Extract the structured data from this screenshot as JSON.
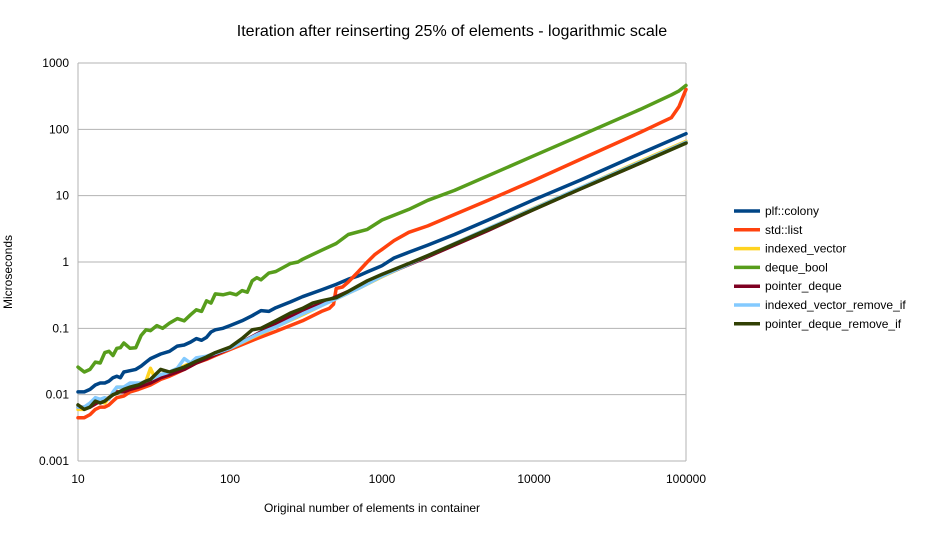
{
  "chart_data": {
    "type": "line",
    "title": "Iteration after reinserting 25% of elements - logarithmic scale",
    "xlabel": "Original number of elements in container",
    "ylabel": "Microseconds",
    "x_scale": "log",
    "y_scale": "log",
    "xlim": [
      10,
      100000
    ],
    "ylim": [
      0.001,
      1000
    ],
    "x_ticks": [
      "10",
      "100",
      "1000",
      "10000",
      "100000"
    ],
    "y_ticks": [
      "0.001",
      "0.01",
      "0.1",
      "1",
      "10",
      "100",
      "1000"
    ],
    "grid": "horizontal",
    "legend_position": "right",
    "series": [
      {
        "name": "plf::colony",
        "color": "#004586",
        "points": [
          [
            10,
            0.011
          ],
          [
            11,
            0.011
          ],
          [
            12,
            0.012
          ],
          [
            13,
            0.014
          ],
          [
            14,
            0.015
          ],
          [
            15,
            0.015
          ],
          [
            16,
            0.016
          ],
          [
            17,
            0.018
          ],
          [
            18,
            0.019
          ],
          [
            19,
            0.018
          ],
          [
            20,
            0.022
          ],
          [
            22,
            0.023
          ],
          [
            24,
            0.024
          ],
          [
            26,
            0.027
          ],
          [
            28,
            0.031
          ],
          [
            30,
            0.035
          ],
          [
            35,
            0.041
          ],
          [
            40,
            0.045
          ],
          [
            45,
            0.054
          ],
          [
            50,
            0.056
          ],
          [
            55,
            0.062
          ],
          [
            60,
            0.07
          ],
          [
            65,
            0.066
          ],
          [
            70,
            0.073
          ],
          [
            75,
            0.088
          ],
          [
            80,
            0.095
          ],
          [
            90,
            0.1
          ],
          [
            100,
            0.11
          ],
          [
            120,
            0.13
          ],
          [
            140,
            0.155
          ],
          [
            160,
            0.185
          ],
          [
            180,
            0.18
          ],
          [
            200,
            0.205
          ],
          [
            250,
            0.25
          ],
          [
            300,
            0.3
          ],
          [
            400,
            0.38
          ],
          [
            500,
            0.46
          ],
          [
            600,
            0.55
          ],
          [
            700,
            0.62
          ],
          [
            800,
            0.71
          ],
          [
            1000,
            0.88
          ],
          [
            1200,
            1.15
          ],
          [
            1500,
            1.4
          ],
          [
            2000,
            1.8
          ],
          [
            3000,
            2.6
          ],
          [
            5000,
            4.3
          ],
          [
            10000,
            8.7
          ],
          [
            20000,
            17
          ],
          [
            50000,
            43
          ],
          [
            100000,
            86
          ]
        ]
      },
      {
        "name": "std::list",
        "color": "#ff420e",
        "points": [
          [
            10,
            0.0045
          ],
          [
            11,
            0.0045
          ],
          [
            12,
            0.005
          ],
          [
            13,
            0.006
          ],
          [
            14,
            0.0065
          ],
          [
            15,
            0.0065
          ],
          [
            16,
            0.007
          ],
          [
            17,
            0.008
          ],
          [
            18,
            0.009
          ],
          [
            20,
            0.0095
          ],
          [
            22,
            0.011
          ],
          [
            25,
            0.012
          ],
          [
            30,
            0.014
          ],
          [
            35,
            0.017
          ],
          [
            40,
            0.019
          ],
          [
            50,
            0.024
          ],
          [
            60,
            0.03
          ],
          [
            70,
            0.034
          ],
          [
            80,
            0.039
          ],
          [
            100,
            0.048
          ],
          [
            150,
            0.07
          ],
          [
            200,
            0.09
          ],
          [
            300,
            0.13
          ],
          [
            400,
            0.18
          ],
          [
            450,
            0.2
          ],
          [
            480,
            0.23
          ],
          [
            500,
            0.4
          ],
          [
            550,
            0.42
          ],
          [
            600,
            0.5
          ],
          [
            700,
            0.72
          ],
          [
            800,
            1.0
          ],
          [
            900,
            1.3
          ],
          [
            1000,
            1.55
          ],
          [
            1200,
            2.1
          ],
          [
            1500,
            2.8
          ],
          [
            2000,
            3.5
          ],
          [
            3000,
            5.2
          ],
          [
            5000,
            8.5
          ],
          [
            10000,
            17
          ],
          [
            20000,
            35
          ],
          [
            50000,
            90
          ],
          [
            70000,
            130
          ],
          [
            80000,
            150
          ],
          [
            90000,
            220
          ],
          [
            95000,
            300
          ],
          [
            100000,
            400
          ]
        ]
      },
      {
        "name": "indexed_vector",
        "color": "#ffd320",
        "points": [
          [
            10,
            0.006
          ],
          [
            11,
            0.006
          ],
          [
            12,
            0.007
          ],
          [
            13,
            0.0075
          ],
          [
            14,
            0.008
          ],
          [
            15,
            0.0075
          ],
          [
            16,
            0.009
          ],
          [
            17,
            0.01
          ],
          [
            18,
            0.013
          ],
          [
            20,
            0.013
          ],
          [
            22,
            0.012
          ],
          [
            24,
            0.013
          ],
          [
            26,
            0.015
          ],
          [
            28,
            0.016
          ],
          [
            30,
            0.025
          ],
          [
            32,
            0.018
          ],
          [
            35,
            0.02
          ],
          [
            40,
            0.022
          ],
          [
            50,
            0.027
          ],
          [
            60,
            0.033
          ],
          [
            70,
            0.037
          ],
          [
            80,
            0.041
          ],
          [
            100,
            0.05
          ],
          [
            150,
            0.078
          ],
          [
            200,
            0.105
          ],
          [
            300,
            0.16
          ],
          [
            400,
            0.22
          ],
          [
            500,
            0.28
          ],
          [
            700,
            0.4
          ],
          [
            1000,
            0.6
          ],
          [
            2000,
            1.25
          ],
          [
            5000,
            3.2
          ],
          [
            10000,
            6.5
          ],
          [
            20000,
            13
          ],
          [
            50000,
            33
          ],
          [
            100000,
            66
          ]
        ]
      },
      {
        "name": "deque_bool",
        "color": "#579d1c",
        "points": [
          [
            10,
            0.026
          ],
          [
            11,
            0.022
          ],
          [
            12,
            0.024
          ],
          [
            13,
            0.031
          ],
          [
            14,
            0.03
          ],
          [
            15,
            0.043
          ],
          [
            16,
            0.045
          ],
          [
            17,
            0.039
          ],
          [
            18,
            0.05
          ],
          [
            19,
            0.051
          ],
          [
            20,
            0.06
          ],
          [
            22,
            0.05
          ],
          [
            24,
            0.051
          ],
          [
            26,
            0.078
          ],
          [
            28,
            0.095
          ],
          [
            30,
            0.092
          ],
          [
            33,
            0.11
          ],
          [
            36,
            0.1
          ],
          [
            40,
            0.12
          ],
          [
            45,
            0.14
          ],
          [
            50,
            0.13
          ],
          [
            55,
            0.16
          ],
          [
            60,
            0.19
          ],
          [
            65,
            0.18
          ],
          [
            70,
            0.26
          ],
          [
            75,
            0.24
          ],
          [
            80,
            0.33
          ],
          [
            90,
            0.32
          ],
          [
            100,
            0.34
          ],
          [
            110,
            0.32
          ],
          [
            120,
            0.37
          ],
          [
            130,
            0.35
          ],
          [
            140,
            0.52
          ],
          [
            150,
            0.58
          ],
          [
            160,
            0.54
          ],
          [
            180,
            0.68
          ],
          [
            200,
            0.72
          ],
          [
            250,
            0.95
          ],
          [
            280,
            1.0
          ],
          [
            300,
            1.1
          ],
          [
            400,
            1.5
          ],
          [
            500,
            1.9
          ],
          [
            600,
            2.6
          ],
          [
            800,
            3.1
          ],
          [
            1000,
            4.3
          ],
          [
            1500,
            6.2
          ],
          [
            2000,
            8.5
          ],
          [
            3000,
            12
          ],
          [
            5000,
            20
          ],
          [
            10000,
            40
          ],
          [
            20000,
            80
          ],
          [
            50000,
            200
          ],
          [
            80000,
            330
          ],
          [
            90000,
            380
          ],
          [
            100000,
            460
          ]
        ]
      },
      {
        "name": "pointer_deque",
        "color": "#7e0021",
        "points": [
          [
            10,
            0.0065
          ],
          [
            12,
            0.0065
          ],
          [
            14,
            0.008
          ],
          [
            16,
            0.009
          ],
          [
            18,
            0.011
          ],
          [
            20,
            0.011
          ],
          [
            22,
            0.012
          ],
          [
            25,
            0.013
          ],
          [
            30,
            0.015
          ],
          [
            35,
            0.018
          ],
          [
            40,
            0.02
          ],
          [
            50,
            0.024
          ],
          [
            60,
            0.03
          ],
          [
            70,
            0.035
          ],
          [
            80,
            0.04
          ],
          [
            100,
            0.05
          ],
          [
            150,
            0.082
          ],
          [
            200,
            0.115
          ],
          [
            250,
            0.15
          ],
          [
            300,
            0.18
          ],
          [
            400,
            0.24
          ],
          [
            500,
            0.3
          ],
          [
            700,
            0.42
          ],
          [
            1000,
            0.62
          ],
          [
            2000,
            1.2
          ],
          [
            5000,
            3.0
          ],
          [
            10000,
            6.2
          ],
          [
            20000,
            12.5
          ],
          [
            50000,
            31
          ],
          [
            100000,
            63
          ]
        ]
      },
      {
        "name": "indexed_vector_remove_if",
        "color": "#83caff",
        "points": [
          [
            10,
            0.0065
          ],
          [
            11,
            0.0065
          ],
          [
            12,
            0.0075
          ],
          [
            13,
            0.009
          ],
          [
            14,
            0.0085
          ],
          [
            15,
            0.009
          ],
          [
            16,
            0.0085
          ],
          [
            17,
            0.011
          ],
          [
            18,
            0.013
          ],
          [
            20,
            0.013
          ],
          [
            22,
            0.015
          ],
          [
            24,
            0.015
          ],
          [
            26,
            0.015
          ],
          [
            28,
            0.016
          ],
          [
            30,
            0.017
          ],
          [
            35,
            0.02
          ],
          [
            40,
            0.022
          ],
          [
            45,
            0.025
          ],
          [
            50,
            0.035
          ],
          [
            55,
            0.03
          ],
          [
            60,
            0.036
          ],
          [
            70,
            0.038
          ],
          [
            80,
            0.042
          ],
          [
            100,
            0.05
          ],
          [
            150,
            0.08
          ],
          [
            200,
            0.105
          ],
          [
            300,
            0.165
          ],
          [
            400,
            0.22
          ],
          [
            500,
            0.28
          ],
          [
            700,
            0.4
          ],
          [
            1000,
            0.61
          ],
          [
            2000,
            1.25
          ],
          [
            5000,
            3.2
          ],
          [
            10000,
            6.4
          ],
          [
            20000,
            13
          ],
          [
            50000,
            32
          ],
          [
            100000,
            64
          ]
        ]
      },
      {
        "name": "pointer_deque_remove_if",
        "color": "#314004",
        "points": [
          [
            10,
            0.007
          ],
          [
            11,
            0.006
          ],
          [
            12,
            0.0065
          ],
          [
            13,
            0.008
          ],
          [
            14,
            0.0075
          ],
          [
            15,
            0.008
          ],
          [
            16,
            0.009
          ],
          [
            17,
            0.01
          ],
          [
            18,
            0.0105
          ],
          [
            20,
            0.012
          ],
          [
            22,
            0.013
          ],
          [
            25,
            0.014
          ],
          [
            28,
            0.016
          ],
          [
            30,
            0.017
          ],
          [
            35,
            0.024
          ],
          [
            40,
            0.022
          ],
          [
            50,
            0.026
          ],
          [
            60,
            0.032
          ],
          [
            70,
            0.037
          ],
          [
            80,
            0.043
          ],
          [
            100,
            0.052
          ],
          [
            120,
            0.07
          ],
          [
            140,
            0.095
          ],
          [
            160,
            0.1
          ],
          [
            200,
            0.13
          ],
          [
            250,
            0.17
          ],
          [
            300,
            0.2
          ],
          [
            350,
            0.24
          ],
          [
            400,
            0.26
          ],
          [
            500,
            0.29
          ],
          [
            600,
            0.36
          ],
          [
            700,
            0.44
          ],
          [
            800,
            0.52
          ],
          [
            1000,
            0.65
          ],
          [
            1500,
            0.95
          ],
          [
            2000,
            1.25
          ],
          [
            5000,
            3.1
          ],
          [
            10000,
            6.2
          ],
          [
            20000,
            12.5
          ],
          [
            50000,
            31
          ],
          [
            100000,
            62
          ]
        ]
      }
    ]
  }
}
